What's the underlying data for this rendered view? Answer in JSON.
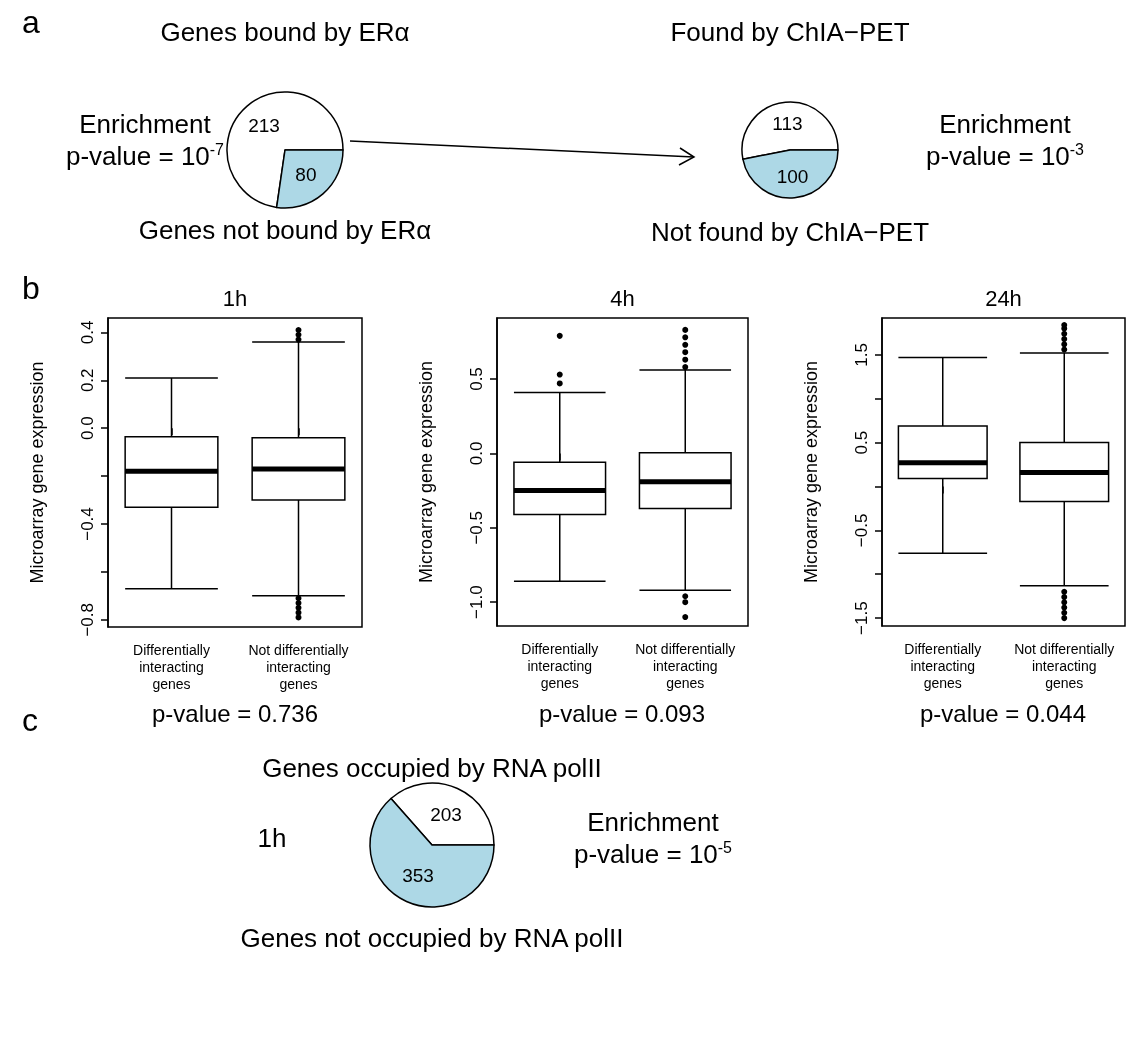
{
  "chart_data": [
    {
      "type": "pie",
      "categories": [
        "Genes bound by ERα",
        "Genes not bound by ERα"
      ],
      "values": [
        213,
        80
      ],
      "colors": [
        "#ffffff",
        "#add8e6"
      ],
      "data_labels": true,
      "annotations": [
        "a",
        "Enrichment\np-value = 10$^{-7}$"
      ]
    },
    {
      "type": "pie",
      "categories": [
        "Found by ChIA−PET",
        "Not found by ChIA−PET"
      ],
      "values": [
        113,
        100
      ],
      "colors": [
        "#ffffff",
        "#add8e6"
      ],
      "data_labels": true,
      "annotations": [
        "Enrichment\np-value = 10$^{-3}$"
      ]
    },
    {
      "type": "box",
      "title": "1h",
      "ylabel": "Microarray gene expression",
      "categories": [
        "Differentially\ninteracting\ngenes",
        "Not differentially\ninteracting\ngenes"
      ],
      "boxes": [
        {
          "low": -0.67,
          "q1": -0.33,
          "median": -0.18,
          "q3": -0.036,
          "high": 0.21
        },
        {
          "low": -0.7,
          "q1": -0.3,
          "median": -0.17,
          "q3": -0.04,
          "high": 0.36,
          "outliers": [
            0.37,
            0.39,
            0.41,
            -0.71,
            -0.73,
            -0.75,
            -0.77,
            -0.79
          ]
        }
      ],
      "ylim": [
        -0.83,
        0.46
      ],
      "yticks": [
        {
          "value": -0.8,
          "label": "−0.8"
        },
        {
          "value": -0.6,
          "label": null
        },
        {
          "value": -0.4,
          "label": "−0.4"
        },
        {
          "value": -0.2,
          "label": null
        },
        {
          "value": 0,
          "label": "0.0"
        },
        0.2,
        0.4
      ],
      "annotations": [
        "b",
        "p-value = 0.736"
      ]
    },
    {
      "type": "box",
      "title": "4h",
      "ylabel": "Microarray gene expression",
      "categories": [
        "Differentially\ninteracting\ngenes",
        "Not differentially\ninteracting\ngenes"
      ],
      "boxes": [
        {
          "low": -0.86,
          "q1": -0.41,
          "median": -0.25,
          "q3": -0.06,
          "high": 0.41,
          "outliers": [
            0.79,
            0.53,
            0.47
          ]
        },
        {
          "low": -0.92,
          "q1": -0.37,
          "median": -0.19,
          "q3": 0.005,
          "high": 0.56,
          "outliers": [
            0.58,
            0.63,
            0.68,
            0.73,
            0.78,
            0.83,
            -0.96,
            -1,
            -1.1
          ]
        }
      ],
      "ylim": [
        -1.16,
        0.91
      ],
      "yticks": [
        {
          "value": -1,
          "label": "−1.0"
        },
        {
          "value": -0.5,
          "label": "−0.5"
        },
        {
          "value": 0,
          "label": "0.0"
        },
        0.5
      ],
      "annotations": [
        "p-value = 0.093"
      ]
    },
    {
      "type": "box",
      "title": "24h",
      "ylabel": "Microarray gene expression",
      "categories": [
        "Differentially\ninteracting\ngenes",
        "Not differentially\ninteracting\ngenes"
      ],
      "boxes": [
        {
          "low": -0.76,
          "q1": 0.09,
          "median": 0.27,
          "q3": 0.69,
          "high": 1.47
        },
        {
          "low": -1.13,
          "q1": -0.17,
          "median": 0.16,
          "q3": 0.5,
          "high": 1.52,
          "outliers": [
            1.56,
            1.62,
            1.68,
            1.74,
            1.8,
            1.84,
            -1.2,
            -1.26,
            -1.32,
            -1.38,
            -1.44,
            -1.5
          ]
        }
      ],
      "ylim": [
        -1.59,
        1.92
      ],
      "yticks": [
        {
          "value": -1.5,
          "label": "−1.5"
        },
        {
          "value": -1,
          "label": null
        },
        {
          "value": -0.5,
          "label": "−0.5"
        },
        {
          "value": 0,
          "label": null
        },
        0.5,
        {
          "value": 1,
          "label": null
        },
        1.5
      ],
      "annotations": [
        "p-value = 0.044"
      ]
    },
    {
      "type": "pie",
      "categories": [
        "Genes occupied by RNA polII",
        "Genes not occupied by RNA polII"
      ],
      "values": [
        203,
        353
      ],
      "colors": [
        "#ffffff",
        "#add8e6"
      ],
      "data_labels": true,
      "annotations": [
        "c",
        "1h",
        "Enrichment\np-value = 10$^{-5}$"
      ]
    }
  ]
}
